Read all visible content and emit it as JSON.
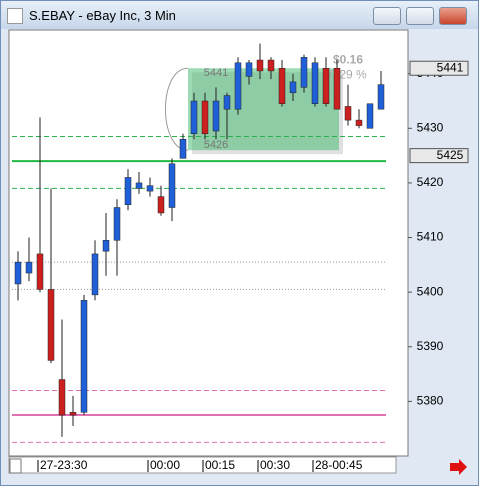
{
  "chart_data": {
    "type": "candlestick",
    "title": "S.EBAY - eBay Inc, 3 Min",
    "categories": [
      null,
      null,
      "27-23:30",
      null,
      null,
      null,
      null,
      null,
      null,
      null,
      null,
      null,
      "00:00",
      null,
      null,
      null,
      null,
      "00:15",
      null,
      null,
      null,
      null,
      "00:30",
      null,
      null,
      null,
      null,
      "28-00:45",
      null,
      null,
      null,
      null,
      null,
      null
    ],
    "open": [
      5401.5,
      5403.5,
      5407,
      5400.5,
      5384,
      5378,
      5378,
      5399.5,
      5407.5,
      5409.5,
      5416,
      5419,
      5418.5,
      5417.5,
      5415.5,
      5424.5,
      5429,
      5435,
      5429.5,
      5433.5,
      5433.5,
      5439.5,
      5442.5,
      5442.5,
      5441,
      5436.5,
      5437.5,
      5434.5,
      5441,
      5441,
      5434,
      5431.5,
      5430,
      5433.5
    ],
    "high": [
      5407.5,
      5410,
      5432,
      5419,
      5395,
      5381,
      5399.5,
      5409.5,
      5414.5,
      5417,
      5422.5,
      5422,
      5421,
      5419.5,
      5424.5,
      5429,
      5436.5,
      5436.5,
      5437.5,
      5436.5,
      5443,
      5442.5,
      5445.5,
      5443,
      5442.5,
      5440,
      5443.5,
      5443,
      5443,
      5442.5,
      5438,
      5433.5,
      5434.5,
      5440.5
    ],
    "low": [
      5398.5,
      5402,
      5400,
      5387,
      5373.5,
      5375.5,
      5377.5,
      5398.5,
      5403,
      5403,
      5415,
      5418,
      5417.5,
      5414,
      5413,
      5424.5,
      5428,
      5428,
      5428,
      5428,
      5432.5,
      5438,
      5439,
      5439,
      5434,
      5435,
      5436.5,
      5434,
      5434,
      5433.5,
      5430.5,
      5430,
      5430,
      5433.5
    ],
    "close": [
      5405.5,
      5405.5,
      5400.5,
      5387.5,
      5377.5,
      5377.5,
      5398.5,
      5407,
      5409.5,
      5415.5,
      5421,
      5420,
      5419.5,
      5414.5,
      5423.5,
      5428,
      5435,
      5429,
      5435,
      5436,
      5442,
      5442,
      5440.5,
      5440.5,
      5434.5,
      5438.5,
      5443,
      5442,
      5434.5,
      5433.5,
      5431.5,
      5430.5,
      5434.5,
      5438
    ],
    "up_color": "#1f5fd8",
    "down_color": "#cc2020",
    "ylim": [
      5370,
      5448
    ],
    "yticks": [
      5380,
      5390,
      5400,
      5410,
      5420,
      5430,
      5440
    ],
    "levels": [
      {
        "value": 5428.5,
        "color": "#2bb24c",
        "style": "dashed"
      },
      {
        "value": 5424,
        "color": "#22b844",
        "style": "solid"
      },
      {
        "value": 5419,
        "color": "#2bb24c",
        "style": "dashed"
      },
      {
        "value": 5405.5,
        "color": "#999999",
        "style": "dotted"
      },
      {
        "value": 5400.5,
        "color": "#999999",
        "style": "dotted"
      },
      {
        "value": 5382,
        "color": "#e070b0",
        "style": "dashed"
      },
      {
        "value": 5377.5,
        "color": "#e070b0",
        "style": "solid"
      },
      {
        "value": 5372.5,
        "color": "#e070b0",
        "style": "dashed"
      }
    ],
    "price_markers": [
      5441,
      5425
    ],
    "range_box": {
      "high": 5441,
      "low": 5426,
      "color": "#3cb86a",
      "change_label": "$0.16",
      "percent_label": "0.29 %"
    }
  }
}
